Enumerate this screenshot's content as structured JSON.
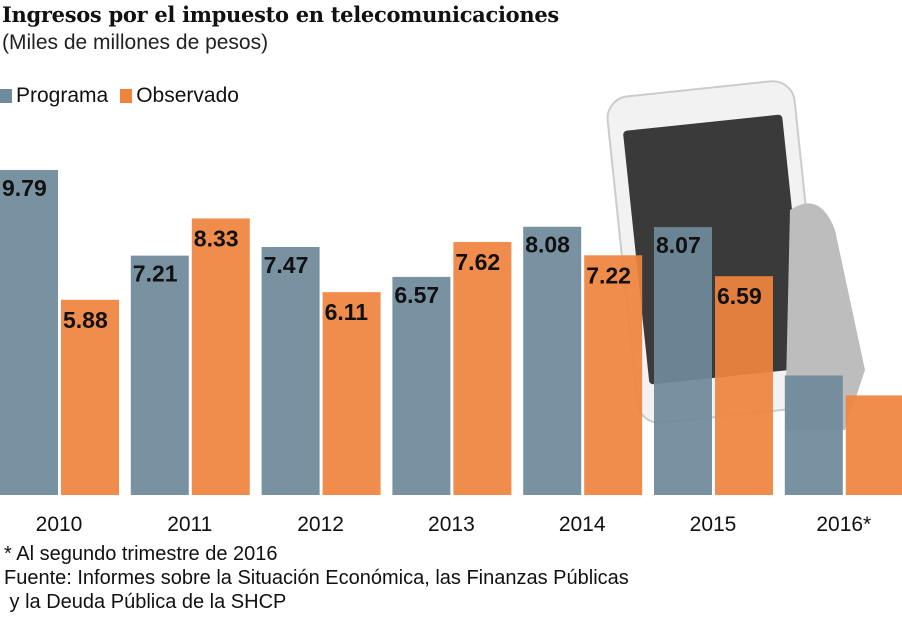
{
  "chart_data": {
    "type": "bar",
    "title": "Ingresos por el impuesto en telecomunicaciones",
    "subtitle": "(Miles de millones de pesos)",
    "categories": [
      "2010",
      "2011",
      "2012",
      "2013",
      "2014",
      "2015",
      "2016*"
    ],
    "series": [
      {
        "name": "Programa",
        "color": "#6f8a9b",
        "values": [
          9.79,
          7.21,
          7.47,
          6.57,
          8.08,
          8.07,
          3.6
        ],
        "labels": [
          "9.79",
          "7.21",
          "7.47",
          "6.57",
          "8.08",
          "8.07",
          ""
        ]
      },
      {
        "name": "Observado",
        "color": "#f0843e",
        "values": [
          5.88,
          8.33,
          6.11,
          7.62,
          7.22,
          6.59,
          3.0
        ],
        "labels": [
          "5.88",
          "8.33",
          "6.11",
          "7.62",
          "7.22",
          "6.59",
          ""
        ]
      }
    ],
    "ylim": [
      0,
      10
    ],
    "grid": false,
    "legend_placement": "top-left",
    "notes": [
      "* Al segundo trimestre de 2016",
      "Fuente: Informes sobre la Situación Económica, las Finanzas Públicas",
      " y la Deuda Pública de la SHCP"
    ]
  }
}
